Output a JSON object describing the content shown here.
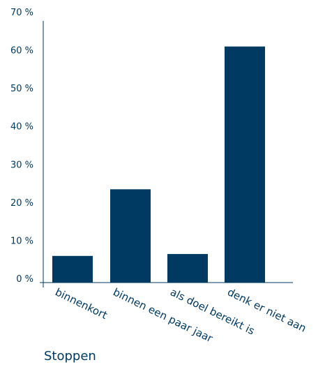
{
  "chart_data": {
    "type": "bar",
    "title": "",
    "xlabel": "Stoppen",
    "ylabel": "",
    "categories": [
      "binnenkort",
      "binnen een paar jaar",
      "als doel bereikt is",
      "denk er niet aan"
    ],
    "values": [
      7,
      24.5,
      7.5,
      62
    ],
    "ylim": [
      0,
      70
    ],
    "yticks": [
      0,
      10,
      20,
      30,
      40,
      50,
      60,
      70
    ],
    "ytick_labels": [
      "0 %",
      "10 %",
      "20 %",
      "30 %",
      "40 %",
      "50 %",
      "60 %",
      "70 %"
    ],
    "grid": false,
    "colors": {
      "bar": "#003a63",
      "axis": "#003a63",
      "text": "#003a63"
    }
  }
}
